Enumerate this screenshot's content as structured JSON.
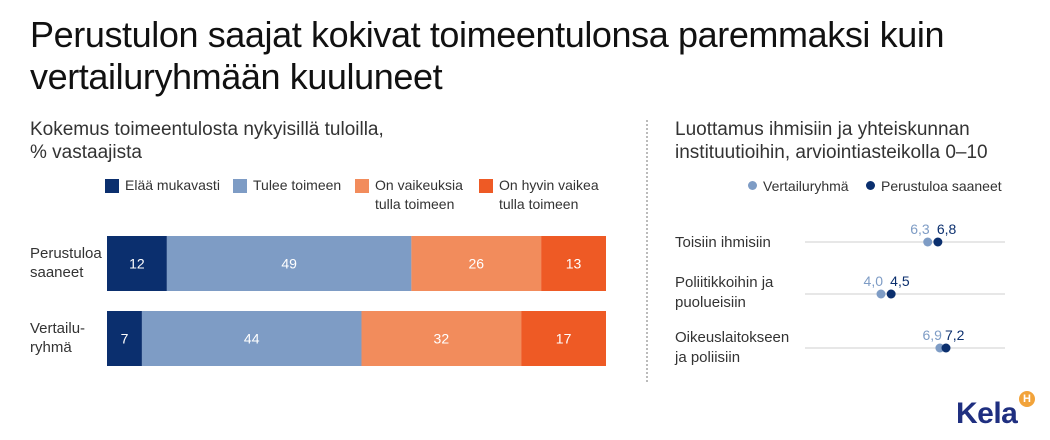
{
  "title": "Perustulon saajat kokivat toimeentulonsa paremmaksi kuin\nvertailuryhmään kuuluneet",
  "left_subtitle": "Kokemus toimeentulosta nykyisillä tuloilla,\n% vastaajista",
  "right_subtitle": "Luottamus ihmisiin ja yhteiskunnan\ninstituutioihin, arviointiasteikolla 0–10",
  "logo_text": "Kela",
  "logo_badge": "H",
  "chart_data": [
    {
      "type": "bar",
      "orientation": "horizontal",
      "stacked": true,
      "title": "Kokemus toimeentulosta nykyisillä tuloilla,\n% vastaajista",
      "categories": [
        "Perustuloa\nsaaneet",
        "Vertailu-\nryhmä"
      ],
      "series": [
        {
          "name": "Elää mukavasti",
          "color": "#0b2f6e",
          "values": [
            12,
            7
          ]
        },
        {
          "name": "Tulee toimeen",
          "color": "#7e9cc5",
          "values": [
            49,
            44
          ]
        },
        {
          "name": "On vaikeuksia\ntulla toimeen",
          "color": "#f28c5c",
          "values": [
            26,
            32
          ]
        },
        {
          "name": "On hyvin vaikea\ntulla toimeen",
          "color": "#ee5a25",
          "values": [
            13,
            17
          ]
        }
      ],
      "xlim": [
        0,
        100
      ],
      "legend": "top"
    },
    {
      "type": "scatter",
      "subtype": "dot-plot",
      "title": "Luottamus ihmisiin ja yhteiskunnan\ninstituutioihin, arviointiasteikolla 0–10",
      "categories": [
        "Toisiin ihmisiin",
        "Poliitikkoihin ja\npuolueisiin",
        "Oikeuslaitokseen\nja poliisiin"
      ],
      "series": [
        {
          "name": "Vertailuryhmä",
          "color": "#7e9cc5",
          "values": [
            6.3,
            4.0,
            6.9
          ],
          "labels": [
            "6,3",
            "4,0",
            "6,9"
          ]
        },
        {
          "name": "Perustuloa saaneet",
          "color": "#0b2f6e",
          "values": [
            6.8,
            4.5,
            7.2
          ],
          "labels": [
            "6,8",
            "4,5",
            "7,2"
          ]
        }
      ],
      "xlim": [
        0,
        10
      ],
      "legend": "top"
    }
  ]
}
